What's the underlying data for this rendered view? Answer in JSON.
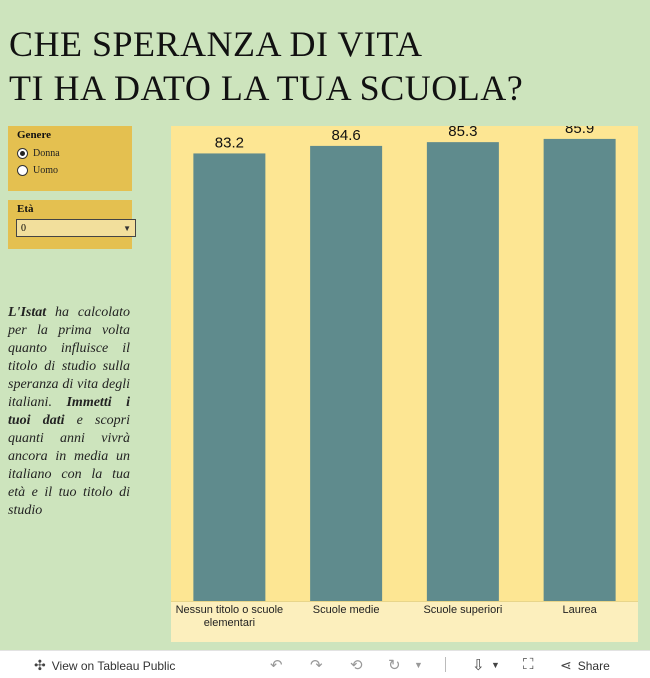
{
  "title": {
    "line1": "CHE SPERANZA DI VITA",
    "line2": "TI HA DATO LA TUA SCUOLA?"
  },
  "filters": {
    "genere": {
      "label": "Genere",
      "options": [
        "Donna",
        "Uomo"
      ],
      "selected": "Donna"
    },
    "eta": {
      "label": "Età",
      "value": "0"
    }
  },
  "description": {
    "part1_bold": "L'Istat",
    "part1": " ha calcolato per la prima volta quanto influisce il titolo di studio sulla speranza di vita degli italiani. ",
    "part2_bold": "Immetti i tuoi dati",
    "part2": " e scopri quanti anni vivrà ancora in media un italiano con la tua età e il tuo titolo di studio"
  },
  "chart_data": {
    "type": "bar",
    "categories": [
      "Nessun titolo o scuole elementari",
      "Scuole medie",
      "Scuole superiori",
      "Laurea"
    ],
    "values": [
      83.2,
      84.6,
      85.3,
      85.9
    ],
    "data_labels": [
      "83.2",
      "84.6",
      "85.3",
      "85.9"
    ],
    "title": "",
    "xlabel": "",
    "ylabel": "",
    "ylim": [
      0,
      88.3
    ],
    "grid": false,
    "colors": {
      "bar": "#5f8b8d",
      "background": "#fde693",
      "axis_band": "#fcefbd"
    }
  },
  "footer": {
    "view_label": "View on Tableau Public",
    "share_label": "Share",
    "icons": [
      "tableau-logo-icon",
      "undo-icon",
      "redo-icon",
      "revert-icon",
      "refresh-icon",
      "download-icon",
      "fullscreen-icon",
      "share-icon"
    ]
  },
  "colors": {
    "page_bg": "#cde4bd",
    "filter_bg": "#e4c050",
    "select_bg": "#f2df9c"
  }
}
